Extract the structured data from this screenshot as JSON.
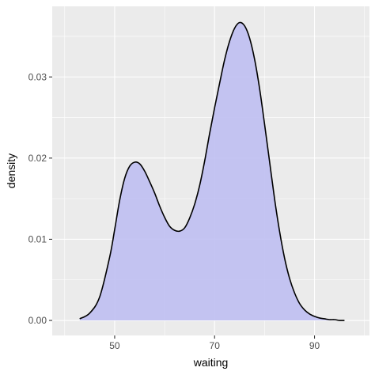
{
  "chart_data": {
    "type": "area",
    "title": "",
    "xlabel": "waiting",
    "ylabel": "density",
    "xlim": [
      37.5,
      101
    ],
    "ylim": [
      -0.00185,
      0.0387
    ],
    "x_ticks": [
      50,
      70,
      90
    ],
    "x_tick_labels": [
      "50",
      "70",
      "90"
    ],
    "y_ticks": [
      0.0,
      0.01,
      0.02,
      0.03
    ],
    "y_tick_labels": [
      "0.00",
      "0.01",
      "0.02",
      "0.03"
    ],
    "grid": true,
    "legend": "none",
    "series": [
      {
        "x": [
          43,
          45,
          47,
          49,
          50,
          51,
          52,
          53,
          54,
          55,
          56,
          57,
          58,
          59,
          60,
          61,
          62,
          63,
          64,
          65,
          66,
          67,
          68,
          69,
          70,
          71,
          72,
          73,
          74,
          75,
          76,
          77,
          78,
          79,
          80,
          81,
          82,
          83,
          84,
          85,
          86,
          87,
          88,
          89,
          90,
          91,
          92,
          93,
          94,
          95,
          96
        ],
        "y": [
          0.0002,
          0.0009,
          0.0029,
          0.0078,
          0.0112,
          0.0148,
          0.0175,
          0.019,
          0.0195,
          0.0193,
          0.0184,
          0.0171,
          0.0157,
          0.0141,
          0.0127,
          0.0116,
          0.0111,
          0.011,
          0.0114,
          0.0126,
          0.0143,
          0.0166,
          0.0196,
          0.023,
          0.0262,
          0.0292,
          0.0321,
          0.0344,
          0.036,
          0.0367,
          0.0363,
          0.0348,
          0.0322,
          0.0286,
          0.0242,
          0.0196,
          0.015,
          0.011,
          0.0077,
          0.0052,
          0.0034,
          0.0021,
          0.0013,
          0.0008,
          0.0005,
          0.0003,
          0.0002,
          0.0001,
          0.0001,
          0.0,
          0.0
        ]
      }
    ],
    "fill_color": "#bfbff2",
    "line_color": "#000000",
    "panel_color": "#ebebeb",
    "grid_color": "#ffffff"
  }
}
